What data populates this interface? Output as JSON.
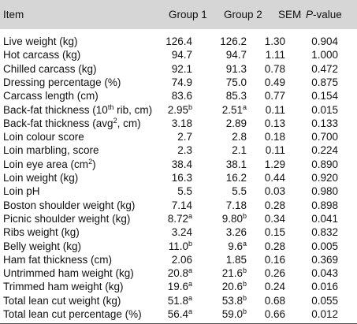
{
  "header": {
    "item": "Item",
    "group1": "Group 1",
    "group2": "Group 2",
    "sem": "SEM",
    "pvalue_p": "P",
    "pvalue_rest": "-value"
  },
  "rows": [
    {
      "pre": "Live weight (kg)",
      "g1": "126.4",
      "g2": "126.2",
      "sem": "1.30",
      "p": "0.904"
    },
    {
      "pre": "Hot carcass (kg)",
      "g1": "94.7",
      "g2": "94.7",
      "sem": "1.11",
      "p": "1.000"
    },
    {
      "pre": "Chilled carcass (kg)",
      "g1": "92.1",
      "g2": "91.3",
      "sem": "0.78",
      "p": "0.472"
    },
    {
      "pre": "Dressing percentage (%)",
      "g1": "74.9",
      "g2": "75.0",
      "sem": "0.49",
      "p": "0.875"
    },
    {
      "pre": "Carcass length (cm)",
      "g1": "83.6",
      "g2": "85.3",
      "sem": "0.77",
      "p": "0.154"
    },
    {
      "pre": "Back-fat thickness (10",
      "sup": "th",
      "post": " rib, cm)",
      "g1": "2.95",
      "g1sup": "b",
      "g2": "2.51",
      "g2sup": "a",
      "sem": "0.11",
      "p": "0.015"
    },
    {
      "pre": "Back-fat thickness (avg",
      "sup": "2",
      "post": ", cm)",
      "g1": "3.18",
      "g2": "2.89",
      "sem": "0.13",
      "p": "0.133"
    },
    {
      "pre": "Loin colour score",
      "g1": "2.7",
      "g2": "2.8",
      "sem": "0.18",
      "p": "0.700"
    },
    {
      "pre": "Loin marbling, score",
      "g1": "2.3",
      "g2": "2.1",
      "sem": "0.11",
      "p": "0.224"
    },
    {
      "pre": "Loin eye area (cm",
      "sup": "2",
      "post": ")",
      "g1": "38.4",
      "g2": "38.1",
      "sem": "1.29",
      "p": "0.890"
    },
    {
      "pre": "Loin weight (kg)",
      "g1": "16.3",
      "g2": "16.2",
      "sem": "0.44",
      "p": "0.920"
    },
    {
      "pre": "Loin pH",
      "g1": "5.5",
      "g2": "5.5",
      "sem": "0.03",
      "p": "0.980"
    },
    {
      "pre": "Boston shoulder weight (kg)",
      "g1": "7.14",
      "g2": "7.18",
      "sem": "0.28",
      "p": "0.898"
    },
    {
      "pre": "Picnic shoulder weight (kg)",
      "g1": "8.72",
      "g1sup": "a",
      "g2": "9.80",
      "g2sup": "b",
      "sem": "0.34",
      "p": "0.041"
    },
    {
      "pre": "Ribs weight (kg)",
      "g1": "3.24",
      "g2": "3.26",
      "sem": "0.15",
      "p": "0.832"
    },
    {
      "pre": "Belly weight (kg)",
      "g1": "11.0",
      "g1sup": "b",
      "g2": "9.6",
      "g2sup": "a",
      "sem": "0.28",
      "p": "0.005"
    },
    {
      "pre": "Ham fat thickness (cm)",
      "g1": "2.06",
      "g2": "1.85",
      "sem": "0.16",
      "p": "0.369"
    },
    {
      "pre": "Untrimmed ham weight (kg)",
      "g1": "20.8",
      "g1sup": "a",
      "g2": "21.6",
      "g2sup": "b",
      "sem": "0.26",
      "p": "0.043"
    },
    {
      "pre": "Trimmed ham weight (kg)",
      "g1": "19.6",
      "g1sup": "a",
      "g2": "20.6",
      "g2sup": "b",
      "sem": "0.24",
      "p": "0.016"
    },
    {
      "pre": "Total lean cut weight (kg)",
      "g1": "51.8",
      "g1sup": "a",
      "g2": "53.8",
      "g2sup": "b",
      "sem": "0.68",
      "p": "0.055"
    },
    {
      "pre": "Total lean cut percentage (%)",
      "g1": "56.4",
      "g1sup": "a",
      "g2": "59.0",
      "g2sup": "b",
      "sem": "0.66",
      "p": "0.012"
    }
  ]
}
